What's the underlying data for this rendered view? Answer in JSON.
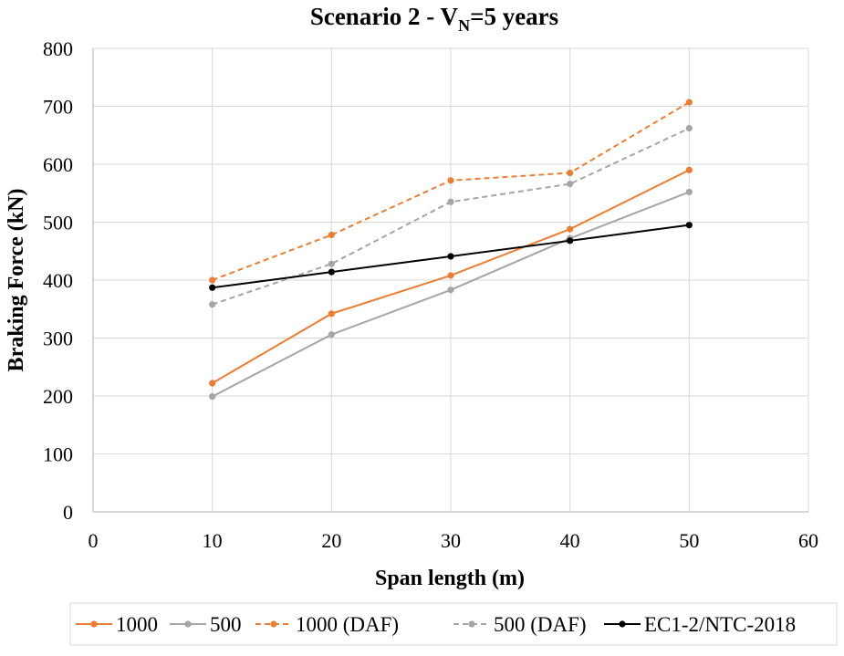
{
  "chart_data": {
    "type": "line",
    "title_main": "Scenario 2 - V",
    "title_sub": "N",
    "title_tail": "=5 years",
    "xlabel": "Span length (m)",
    "ylabel": "Braking Force (kN)",
    "xlim": [
      0,
      60
    ],
    "ylim": [
      0,
      800
    ],
    "xticks": [
      0,
      10,
      20,
      30,
      40,
      50,
      60
    ],
    "yticks": [
      0,
      100,
      200,
      300,
      400,
      500,
      600,
      700,
      800
    ],
    "grid": true,
    "legend_position": "bottom",
    "x": [
      10,
      20,
      30,
      40,
      50
    ],
    "series": [
      {
        "name": "1000",
        "values": [
          222,
          342,
          408,
          488,
          590
        ],
        "color": "#ED7D31",
        "dash": "solid"
      },
      {
        "name": "500",
        "values": [
          199,
          306,
          383,
          472,
          552
        ],
        "color": "#A5A5A5",
        "dash": "solid"
      },
      {
        "name": "1000 (DAF)",
        "values": [
          400,
          478,
          572,
          585,
          707
        ],
        "color": "#ED7D31",
        "dash": "dashed"
      },
      {
        "name": "500 (DAF)",
        "values": [
          358,
          428,
          535,
          566,
          662
        ],
        "color": "#A5A5A5",
        "dash": "dashed"
      },
      {
        "name": "EC1-2/NTC-2018",
        "values": [
          387,
          414,
          441,
          468,
          495
        ],
        "color": "#000000",
        "dash": "solid"
      }
    ]
  }
}
